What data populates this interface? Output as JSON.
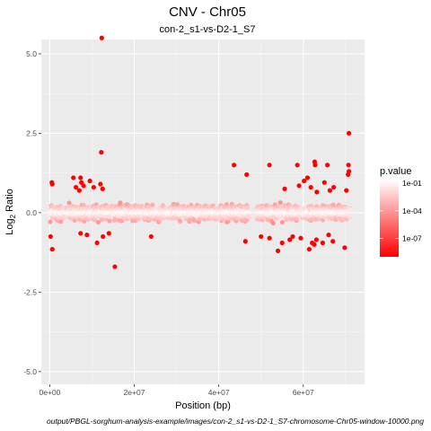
{
  "chart_data": {
    "type": "scatter",
    "title": "CNV - Chr05",
    "subtitle": "con-2_s1-vs-D2-1_S7",
    "xlabel": "Position (bp)",
    "ylabel_main": "Log",
    "ylabel_sub": "2",
    "ylabel_tail": " Ratio",
    "caption": "output/PBGL-sorghum-analysis-example/images/con-2_s1-vs-D2-1_S7-chromosome-Chr05-window-10000.png",
    "xlim": [
      -2000000,
      74500000
    ],
    "ylim": [
      -5.4,
      5.45
    ],
    "x_ticks": [
      {
        "value": 0,
        "label": "0e+00"
      },
      {
        "value": 20000000,
        "label": "2e+07"
      },
      {
        "value": 40000000,
        "label": "4e+07"
      },
      {
        "value": 60000000,
        "label": "6e+07"
      }
    ],
    "y_ticks": [
      {
        "value": 5.0,
        "label": "5.0"
      },
      {
        "value": 2.5,
        "label": "2.5"
      },
      {
        "value": 0.0,
        "label": "0.0"
      },
      {
        "value": -2.5,
        "label": "-2.5"
      },
      {
        "value": -5.0,
        "label": "-5.0"
      }
    ],
    "grid": true,
    "legend": {
      "title": "p.value",
      "placement": "right",
      "scale": "log10",
      "color_low": "#ff0000",
      "color_high": "#ffffff",
      "range_log10": [
        -9,
        -0.6
      ],
      "ticks": [
        {
          "log10": -1,
          "label": "1e-01"
        },
        {
          "log10": -4,
          "label": "1e-04"
        },
        {
          "log10": -7,
          "label": "1e-07"
        }
      ]
    },
    "background_band": {
      "note": "dense cloud of ~7000 windows near 0",
      "segments": [
        [
          0,
          47000000
        ],
        [
          49000000,
          71000000
        ]
      ],
      "log_ratio_spread": 0.55
    },
    "outliers": [
      {
        "x": 12300000,
        "y": 5.5
      },
      {
        "x": 12200000,
        "y": 1.9
      },
      {
        "x": 70800000,
        "y": 2.5
      },
      {
        "x": 43600000,
        "y": 1.5
      },
      {
        "x": 46600000,
        "y": 1.2
      },
      {
        "x": 52000000,
        "y": 1.5
      },
      {
        "x": 58600000,
        "y": 1.5
      },
      {
        "x": 61000000,
        "y": 1.1
      },
      {
        "x": 62700000,
        "y": 1.6
      },
      {
        "x": 62800000,
        "y": 1.5
      },
      {
        "x": 65700000,
        "y": 1.5
      },
      {
        "x": 70700000,
        "y": 1.5
      },
      {
        "x": 70800000,
        "y": 1.3
      },
      {
        "x": 70600000,
        "y": 1.2
      },
      {
        "x": 55600000,
        "y": 0.75
      },
      {
        "x": 59000000,
        "y": 0.85
      },
      {
        "x": 60200000,
        "y": 1.0
      },
      {
        "x": 61800000,
        "y": 0.8
      },
      {
        "x": 63200000,
        "y": 0.65
      },
      {
        "x": 65000000,
        "y": 0.95
      },
      {
        "x": 66300000,
        "y": 0.7
      },
      {
        "x": 67200000,
        "y": 0.8
      },
      {
        "x": 70200000,
        "y": 0.7
      },
      {
        "x": 5600000,
        "y": 1.1
      },
      {
        "x": 7300000,
        "y": 1.1
      },
      {
        "x": 7500000,
        "y": 0.95
      },
      {
        "x": 8000000,
        "y": 0.85
      },
      {
        "x": 6200000,
        "y": 0.8
      },
      {
        "x": 7000000,
        "y": 0.7
      },
      {
        "x": 9500000,
        "y": 1.0
      },
      {
        "x": 10400000,
        "y": 0.8
      },
      {
        "x": 12000000,
        "y": 0.9
      },
      {
        "x": 12500000,
        "y": 0.75
      },
      {
        "x": 500000,
        "y": 0.95
      },
      {
        "x": 600000,
        "y": 0.9
      },
      {
        "x": 15400000,
        "y": -1.7
      },
      {
        "x": 600000,
        "y": -1.15
      },
      {
        "x": 200000,
        "y": -0.75
      },
      {
        "x": 54000000,
        "y": -1.2
      },
      {
        "x": 55000000,
        "y": -0.95
      },
      {
        "x": 56800000,
        "y": -0.85
      },
      {
        "x": 57500000,
        "y": -0.75
      },
      {
        "x": 59400000,
        "y": -0.8
      },
      {
        "x": 61400000,
        "y": -1.15
      },
      {
        "x": 62100000,
        "y": -0.95
      },
      {
        "x": 62600000,
        "y": -1.0
      },
      {
        "x": 63100000,
        "y": -0.85
      },
      {
        "x": 64600000,
        "y": -0.95
      },
      {
        "x": 66000000,
        "y": -0.7
      },
      {
        "x": 69800000,
        "y": -1.1
      },
      {
        "x": 67000000,
        "y": -0.9
      },
      {
        "x": 46300000,
        "y": -0.9
      },
      {
        "x": 50000000,
        "y": -0.75
      },
      {
        "x": 52000000,
        "y": -0.8
      },
      {
        "x": 11200000,
        "y": -0.95
      },
      {
        "x": 12600000,
        "y": -0.75
      },
      {
        "x": 8800000,
        "y": -0.7
      },
      {
        "x": 7300000,
        "y": -0.65
      },
      {
        "x": 14000000,
        "y": -0.65
      },
      {
        "x": 24000000,
        "y": -0.75
      }
    ]
  }
}
